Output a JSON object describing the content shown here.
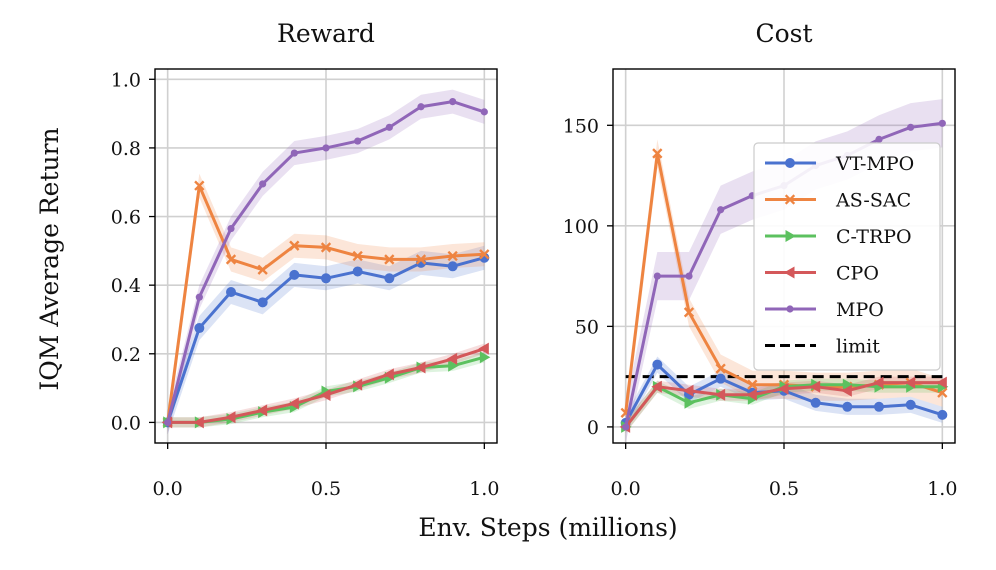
{
  "chart_data": [
    {
      "type": "line",
      "title": "Reward",
      "xlabel": "Env. Steps (millions)",
      "ylabel": "IQM Average Return",
      "xlim": [
        -0.04,
        1.04
      ],
      "ylim": [
        -0.06,
        1.03
      ],
      "xticks": [
        0.0,
        0.5,
        1.0
      ],
      "xtick_labels": [
        "0.0",
        "0.5",
        "1.0"
      ],
      "yticks": [
        0.0,
        0.2,
        0.4,
        0.6,
        0.8,
        1.0
      ],
      "ytick_labels": [
        "0.0",
        "0.2",
        "0.4",
        "0.6",
        "0.8",
        "1.0"
      ],
      "grid": true,
      "x": [
        0.0,
        0.1,
        0.2,
        0.3,
        0.4,
        0.5,
        0.6,
        0.7,
        0.8,
        0.9,
        1.0
      ],
      "series": [
        {
          "name": "VT-MPO",
          "color": "#4a72cf",
          "marker": "circle",
          "values": [
            0.0,
            0.275,
            0.38,
            0.35,
            0.43,
            0.42,
            0.44,
            0.42,
            0.465,
            0.455,
            0.48
          ],
          "band": 0.035
        },
        {
          "name": "AS-SAC",
          "color": "#ee8441",
          "marker": "x",
          "values": [
            0.0,
            0.69,
            0.475,
            0.445,
            0.515,
            0.51,
            0.485,
            0.475,
            0.475,
            0.485,
            0.49
          ],
          "band": 0.035
        },
        {
          "name": "C-TRPO",
          "color": "#5cc15f",
          "marker": "triangle-right",
          "values": [
            0.0,
            0.0,
            0.01,
            0.03,
            0.045,
            0.09,
            0.105,
            0.13,
            0.16,
            0.165,
            0.19
          ],
          "band": 0.015
        },
        {
          "name": "CPO",
          "color": "#d4585a",
          "marker": "triangle-left",
          "values": [
            0.0,
            0.0,
            0.015,
            0.035,
            0.055,
            0.08,
            0.11,
            0.14,
            0.16,
            0.185,
            0.215
          ],
          "band": 0.015
        },
        {
          "name": "MPO",
          "color": "#9066b8",
          "marker": "dot",
          "values": [
            0.0,
            0.365,
            0.565,
            0.695,
            0.785,
            0.8,
            0.82,
            0.86,
            0.92,
            0.935,
            0.905
          ],
          "band": 0.035
        }
      ]
    },
    {
      "type": "line",
      "title": "Cost",
      "xlabel": "",
      "ylabel": "",
      "xlim": [
        -0.04,
        1.04
      ],
      "ylim": [
        -8,
        178
      ],
      "xticks": [
        0.0,
        0.5,
        1.0
      ],
      "xtick_labels": [
        "0.0",
        "0.5",
        "1.0"
      ],
      "yticks": [
        0,
        50,
        100,
        150
      ],
      "ytick_labels": [
        "0",
        "50",
        "100",
        "150"
      ],
      "grid": true,
      "legend_position": "right",
      "limit": {
        "name": "limit",
        "value": 25,
        "color": "#000000"
      },
      "x": [
        0.0,
        0.1,
        0.2,
        0.3,
        0.4,
        0.5,
        0.6,
        0.7,
        0.8,
        0.9,
        1.0
      ],
      "series": [
        {
          "name": "VT-MPO",
          "color": "#4a72cf",
          "marker": "circle",
          "values": [
            2,
            31,
            16,
            24,
            17,
            18,
            12,
            10,
            10,
            11,
            6
          ],
          "band": 4
        },
        {
          "name": "AS-SAC",
          "color": "#ee8441",
          "marker": "x",
          "values": [
            7,
            136,
            57,
            29,
            21,
            21,
            20,
            20,
            21,
            22,
            17
          ],
          "band": 7
        },
        {
          "name": "C-TRPO",
          "color": "#5cc15f",
          "marker": "triangle-right",
          "values": [
            0,
            20,
            12,
            16,
            14,
            20,
            21,
            21,
            20,
            20,
            20
          ],
          "band": 3
        },
        {
          "name": "CPO",
          "color": "#d4585a",
          "marker": "triangle-left",
          "values": [
            0,
            20,
            18,
            16,
            16,
            19,
            20,
            18,
            22,
            22,
            22
          ],
          "band": 3
        },
        {
          "name": "MPO",
          "color": "#9066b8",
          "marker": "dot",
          "values": [
            0,
            75,
            75,
            108,
            115,
            120,
            130,
            135,
            143,
            149,
            151
          ],
          "band": 12
        }
      ]
    }
  ]
}
